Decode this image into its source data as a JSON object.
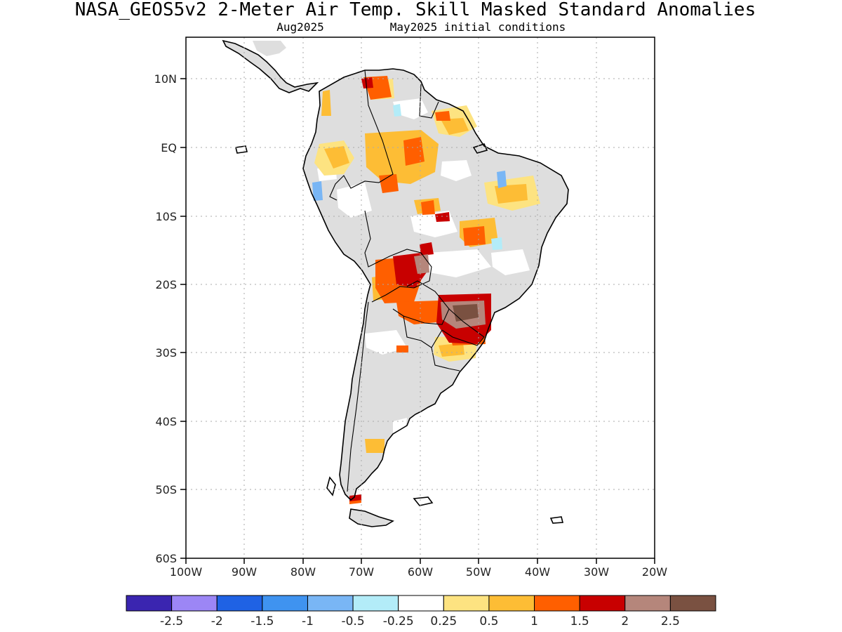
{
  "header": {
    "title": "NASA_GEOS5v2 2-Meter Air Temp. Skill Masked Standard Anomalies",
    "valid_month": "Aug2025",
    "init_label": "May2025 initial conditions"
  },
  "map": {
    "lat_ticks": [
      "10N",
      "EQ",
      "10S",
      "20S",
      "30S",
      "40S",
      "50S",
      "60S"
    ],
    "lon_ticks": [
      "100W",
      "90W",
      "80W",
      "70W",
      "60W",
      "50W",
      "40W",
      "30W",
      "20W"
    ]
  },
  "colorbar": {
    "colors": [
      "#3a25b0",
      "#9c86f5",
      "#1f62e4",
      "#3f93f0",
      "#79b6f5",
      "#b3ecf8",
      "#ffffff",
      "#fde381",
      "#fdbd35",
      "#ff5f00",
      "#c80000",
      "#b5867b",
      "#7a5141"
    ],
    "labels": [
      "-2.5",
      "-2",
      "-1.5",
      "-1",
      "-0.5",
      "-0.25",
      "0.25",
      "0.5",
      "1",
      "1.5",
      "2",
      "2.5"
    ]
  },
  "legend_colors": {
    "masked_land": "#dedede",
    "coastline": "#000000",
    "grid": "#aaaaaa"
  }
}
